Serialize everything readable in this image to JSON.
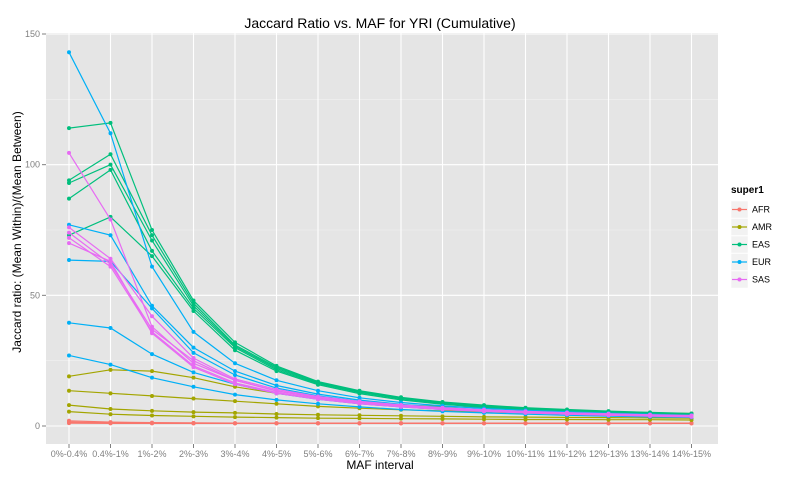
{
  "chart_data": {
    "type": "line",
    "title": "Jaccard Ratio vs. MAF for YRI (Cumulative)",
    "xlabel": "MAF interval",
    "ylabel": "Jaccard ratio: (Mean Within)/(Mean Between)",
    "ylim": [
      -5,
      150
    ],
    "yticks": [
      0,
      50,
      100,
      150
    ],
    "grid": true,
    "legend_position": "right",
    "legend_title": "super1",
    "categories": [
      "0%-0.4%",
      "0.4%-1%",
      "1%-2%",
      "2%-3%",
      "3%-4%",
      "4%-5%",
      "5%-6%",
      "6%-7%",
      "7%-8%",
      "8%-9%",
      "9%-10%",
      "10%-11%",
      "11%-12%",
      "12%-13%",
      "13%-14%",
      "14%-15%"
    ],
    "groups": [
      {
        "name": "AFR",
        "color": "#F8766D",
        "lines": [
          [
            1.5,
            1.2,
            1.1,
            1.0,
            1.0,
            1.0,
            1.0,
            1.0,
            1.0,
            1.0,
            1.0,
            1.0,
            1.0,
            1.0,
            1.0,
            1.0
          ],
          [
            1.1,
            1.0,
            1.0,
            1.0,
            1.0,
            1.0,
            1.0,
            1.0,
            1.0,
            1.0,
            1.0,
            1.0,
            1.0,
            1.0,
            1.0,
            1.0
          ],
          [
            2.0,
            1.5,
            1.3,
            1.2,
            1.1,
            1.1,
            1.1,
            1.1,
            1.1,
            1.1,
            1.1,
            1.1,
            1.1,
            1.1,
            1.1,
            1.1
          ]
        ]
      },
      {
        "name": "AMR",
        "color": "#A3A500",
        "lines": [
          [
            19,
            21.5,
            21,
            18.5,
            15,
            12.5,
            10.5,
            9,
            8,
            7.5,
            7,
            6.5,
            6,
            5.5,
            5,
            4.8
          ],
          [
            8,
            6.5,
            5.8,
            5.3,
            5.0,
            4.6,
            4.3,
            4.1,
            3.9,
            3.7,
            3.5,
            3.4,
            3.3,
            3.2,
            3.1,
            3.0
          ],
          [
            5.5,
            4.5,
            4.0,
            3.7,
            3.4,
            3.2,
            3.0,
            2.9,
            2.8,
            2.7,
            2.6,
            2.5,
            2.5,
            2.4,
            2.4,
            2.3
          ],
          [
            13.5,
            12.5,
            11.5,
            10.5,
            9.5,
            8.5,
            7.5,
            6.8,
            6.2,
            5.8,
            5.4,
            5.0,
            4.7,
            4.4,
            4.2,
            4.0
          ]
        ]
      },
      {
        "name": "EAS",
        "color": "#00BF7D",
        "lines": [
          [
            114,
            116,
            75,
            48,
            32,
            23,
            17,
            13.5,
            11,
            9.2,
            8,
            7,
            6.3,
            5.7,
            5.2,
            4.8
          ],
          [
            94,
            104,
            73,
            47,
            31,
            22.5,
            16.8,
            13.2,
            10.8,
            9.0,
            7.8,
            6.8,
            6.1,
            5.5,
            5.0,
            4.6
          ],
          [
            93,
            100,
            71,
            46,
            30.5,
            22,
            16.5,
            13,
            10.6,
            8.8,
            7.6,
            6.6,
            5.9,
            5.3,
            4.8,
            4.4
          ],
          [
            87,
            98,
            67,
            45,
            30,
            21.5,
            16.2,
            12.8,
            10.4,
            8.6,
            7.4,
            6.4,
            5.7,
            5.1,
            4.6,
            4.2
          ],
          [
            73,
            80,
            65,
            44,
            29,
            21,
            15.8,
            12.4,
            10,
            8.3,
            7.1,
            6.1,
            5.4,
            4.8,
            4.3,
            3.9
          ]
        ]
      },
      {
        "name": "EUR",
        "color": "#00B0F6",
        "lines": [
          [
            143,
            112,
            61,
            36,
            24,
            17.5,
            13.5,
            10.8,
            9,
            7.7,
            6.7,
            6.0,
            5.4,
            4.9,
            4.5,
            4.1
          ],
          [
            77,
            73,
            46,
            30,
            21,
            15.5,
            12.2,
            9.9,
            8.3,
            7.1,
            6.2,
            5.5,
            5.0,
            4.6,
            4.2,
            3.9
          ],
          [
            63.5,
            63,
            45,
            28,
            19.5,
            14.5,
            11.5,
            9.4,
            7.9,
            6.8,
            6.0,
            5.3,
            4.8,
            4.4,
            4.0,
            3.7
          ],
          [
            39.5,
            37.5,
            27.5,
            20.5,
            16,
            12.5,
            10.2,
            8.5,
            7.3,
            6.3,
            5.6,
            5.0,
            4.5,
            4.1,
            3.8,
            3.5
          ],
          [
            27,
            23.5,
            18.5,
            15,
            12,
            10,
            8.5,
            7.3,
            6.3,
            5.6,
            5.0,
            4.5,
            4.1,
            3.8,
            3.5,
            3.3
          ]
        ]
      },
      {
        "name": "SAS",
        "color": "#E76BF3",
        "lines": [
          [
            104.5,
            79,
            38,
            24,
            17.5,
            13.5,
            11,
            9.2,
            7.9,
            6.9,
            6.1,
            5.5,
            5.0,
            4.6,
            4.2,
            3.9
          ],
          [
            76,
            64,
            42,
            26,
            18,
            14,
            11.3,
            9.4,
            8.1,
            7.0,
            6.2,
            5.6,
            5.1,
            4.7,
            4.3,
            4.0
          ],
          [
            74,
            62,
            37,
            25,
            17.5,
            13.3,
            10.8,
            9.0,
            7.7,
            6.7,
            5.9,
            5.3,
            4.8,
            4.4,
            4.0,
            3.7
          ],
          [
            72,
            61,
            36,
            23,
            16.5,
            12.8,
            10.4,
            8.7,
            7.5,
            6.5,
            5.7,
            5.1,
            4.6,
            4.2,
            3.9,
            3.6
          ],
          [
            70,
            63,
            35.5,
            22.5,
            16,
            12.5,
            10.2,
            8.5,
            7.3,
            6.3,
            5.6,
            5.0,
            4.5,
            4.1,
            3.8,
            3.5
          ]
        ]
      }
    ]
  }
}
